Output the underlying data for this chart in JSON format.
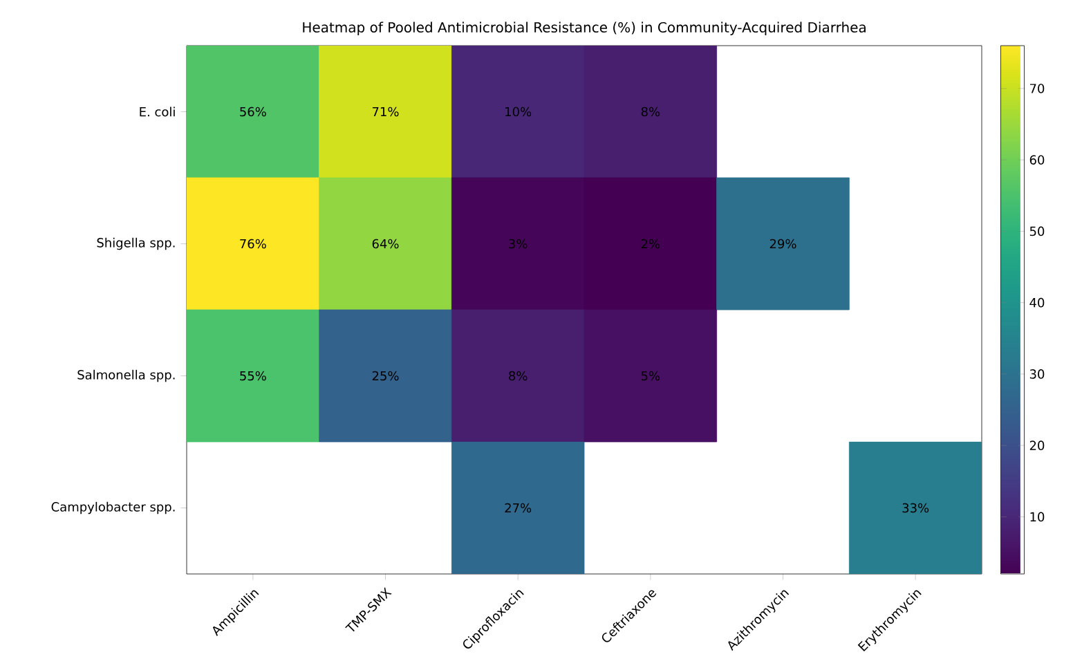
{
  "chart_data": {
    "type": "heatmap",
    "title": "Heatmap of Pooled Antimicrobial Resistance (%) in Community-Acquired Diarrhea",
    "categories": [
      "Ampicillin",
      "TMP-SMX",
      "Ciprofloxacin",
      "Ceftriaxone",
      "Azithromycin",
      "Erythromycin"
    ],
    "y_categories": [
      "E. coli",
      "Shigella spp.",
      "Salmonella spp.",
      "Campylobacter spp."
    ],
    "cells": [
      [
        56,
        71,
        10,
        8,
        null,
        null
      ],
      [
        76,
        64,
        3,
        2,
        29,
        null
      ],
      [
        55,
        25,
        8,
        5,
        null,
        null
      ],
      [
        null,
        null,
        27,
        null,
        null,
        33
      ]
    ],
    "cell_labels": [
      [
        "56%",
        "71%",
        "10%",
        "8%",
        null,
        null
      ],
      [
        "76%",
        "64%",
        "3%",
        "2%",
        "29%",
        null
      ],
      [
        "55%",
        "25%",
        "8%",
        "5%",
        null,
        null
      ],
      [
        null,
        null,
        "27%",
        null,
        null,
        "33%"
      ]
    ],
    "clim": [
      2,
      76
    ],
    "cticks": [
      10,
      20,
      30,
      40,
      50,
      60,
      70
    ]
  }
}
